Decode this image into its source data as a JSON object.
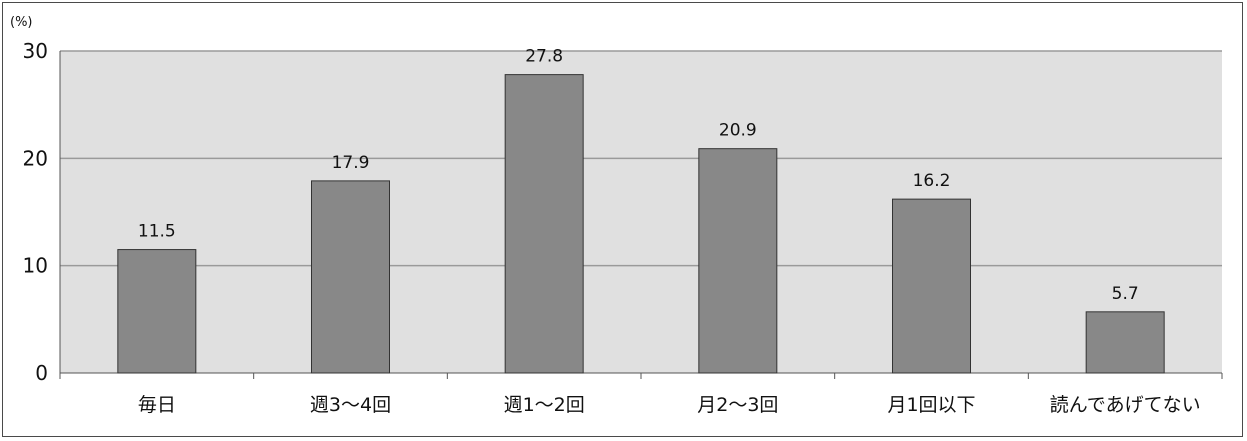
{
  "chart_data": {
    "type": "bar",
    "unit": "(%)",
    "categories": [
      "毎日",
      "週3～4回",
      "週1～2回",
      "月2～3回",
      "月1回以下",
      "読んであげてない"
    ],
    "values": [
      11.5,
      17.9,
      27.8,
      20.9,
      16.2,
      5.7
    ],
    "data_labels": [
      "11.5",
      "17.9",
      "27.8",
      "20.9",
      "16.2",
      "5.7"
    ],
    "ylim": [
      0,
      30
    ],
    "yticks": [
      0,
      10,
      20,
      30
    ],
    "grid": true,
    "legend": "none",
    "colors": {
      "bar_fill": "#888888",
      "bar_stroke": "#333333",
      "plot_background": "#e0e0e0",
      "gridline": "#9a9a9a"
    }
  }
}
